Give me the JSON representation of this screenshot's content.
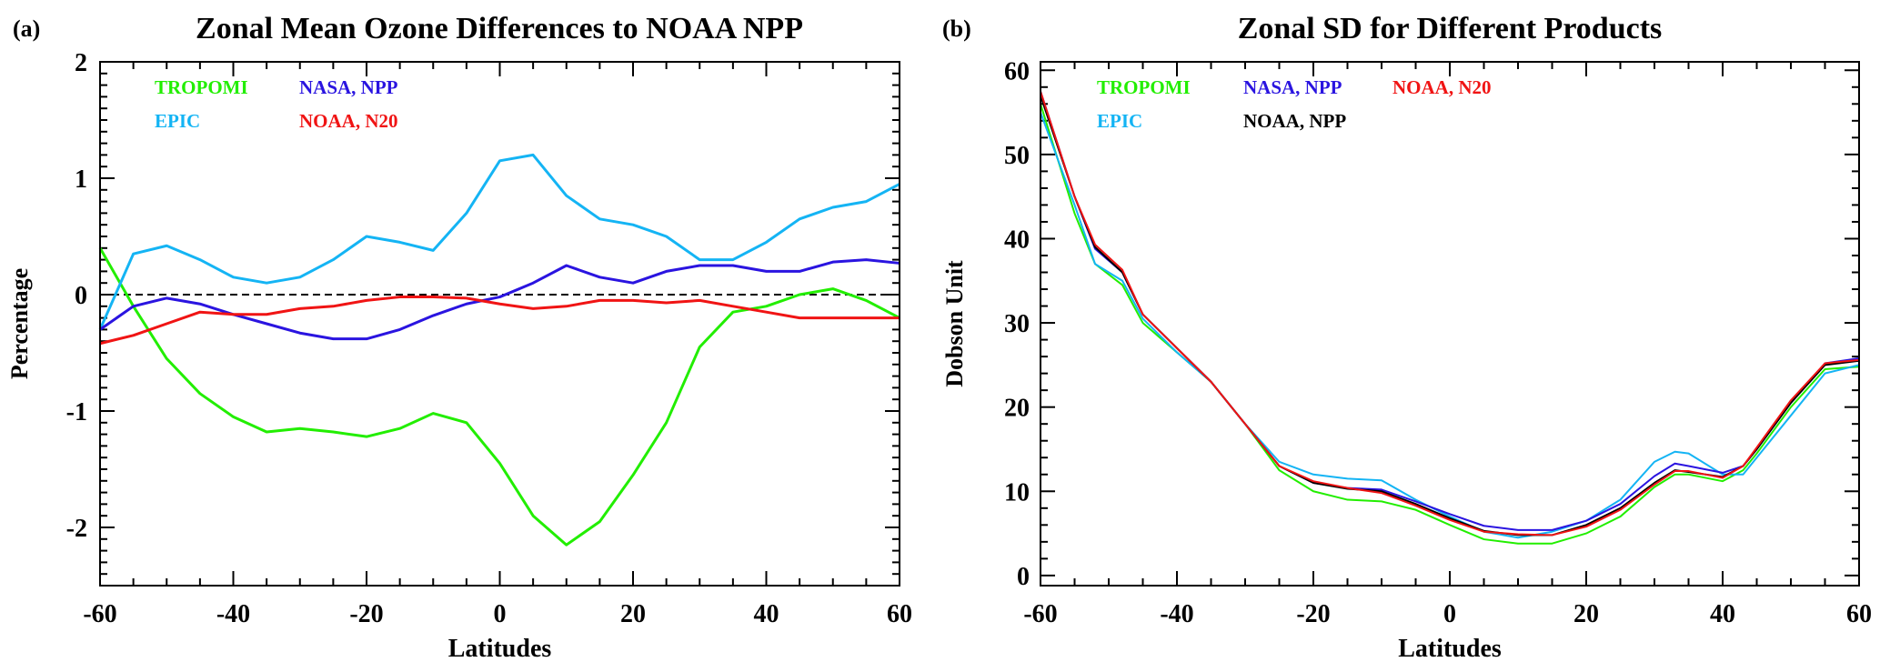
{
  "chart_data": [
    {
      "type": "line",
      "panel_label": "(a)",
      "title": "Zonal Mean Ozone Differences to NOAA NPP",
      "xlabel": "Latitudes",
      "ylabel": "Percentage",
      "xlim": [
        -60,
        60
      ],
      "ylim": [
        -2.5,
        2
      ],
      "xticks": [
        -60,
        -40,
        -20,
        0,
        20,
        40,
        60
      ],
      "yticks": [
        -2,
        -1,
        0,
        1,
        2
      ],
      "reference_line": {
        "y": 0,
        "style": "dashed",
        "color": "#000000"
      },
      "legend_placement": "top-left",
      "x": [
        -60,
        -55,
        -50,
        -45,
        -40,
        -35,
        -30,
        -25,
        -20,
        -15,
        -10,
        -5,
        0,
        5,
        10,
        15,
        20,
        25,
        30,
        35,
        40,
        45,
        50,
        55,
        60
      ],
      "series": [
        {
          "name": "TROPOMI",
          "color": "#22ee00",
          "values": [
            0.4,
            -0.1,
            -0.55,
            -0.85,
            -1.05,
            -1.18,
            -1.15,
            -1.18,
            -1.22,
            -1.15,
            -1.02,
            -1.1,
            -1.45,
            -1.9,
            -2.15,
            -1.95,
            -1.55,
            -1.1,
            -0.45,
            -0.15,
            -0.1,
            0.0,
            0.05,
            -0.05,
            -0.2
          ]
        },
        {
          "name": "EPIC",
          "color": "#14b4f4",
          "values": [
            -0.3,
            0.35,
            0.42,
            0.3,
            0.15,
            0.1,
            0.15,
            0.3,
            0.5,
            0.45,
            0.38,
            0.7,
            1.15,
            1.2,
            0.85,
            0.65,
            0.6,
            0.5,
            0.3,
            0.3,
            0.45,
            0.65,
            0.75,
            0.8,
            0.95
          ]
        },
        {
          "name": "NASA, NPP",
          "color": "#2a14e0",
          "values": [
            -0.3,
            -0.1,
            -0.03,
            -0.08,
            -0.17,
            -0.25,
            -0.33,
            -0.38,
            -0.38,
            -0.3,
            -0.18,
            -0.08,
            -0.02,
            0.1,
            0.25,
            0.15,
            0.1,
            0.2,
            0.25,
            0.25,
            0.2,
            0.2,
            0.28,
            0.3,
            0.27
          ]
        },
        {
          "name": "NOAA, N20",
          "color": "#f01414",
          "values": [
            -0.42,
            -0.35,
            -0.25,
            -0.15,
            -0.17,
            -0.17,
            -0.12,
            -0.1,
            -0.05,
            -0.02,
            -0.02,
            -0.03,
            -0.08,
            -0.12,
            -0.1,
            -0.05,
            -0.05,
            -0.07,
            -0.05,
            -0.1,
            -0.15,
            -0.2,
            -0.2,
            -0.2,
            -0.2
          ]
        }
      ]
    },
    {
      "type": "line",
      "panel_label": "(b)",
      "title": "Zonal SD for Different Products",
      "xlabel": "Latitudes",
      "ylabel": "Dobson Unit",
      "xlim": [
        -60,
        60
      ],
      "ylim": [
        -1.2,
        61
      ],
      "xticks": [
        -60,
        -40,
        -20,
        0,
        20,
        40,
        60
      ],
      "yticks": [
        0,
        10,
        20,
        30,
        40,
        50,
        60
      ],
      "legend_placement": "top-left",
      "x": [
        -60,
        -55,
        -52,
        -48,
        -45,
        -40,
        -35,
        -30,
        -25,
        -20,
        -15,
        -10,
        -5,
        0,
        5,
        10,
        15,
        20,
        25,
        30,
        33,
        35,
        40,
        43,
        45,
        50,
        55,
        60
      ],
      "series": [
        {
          "name": "TROPOMI",
          "color": "#22ee00",
          "values": [
            56,
            43,
            37,
            34.5,
            30,
            26.5,
            23,
            18,
            12.5,
            10,
            9,
            8.8,
            7.8,
            6,
            4.3,
            3.8,
            3.8,
            5,
            7,
            10.5,
            12,
            12,
            11.2,
            12.5,
            14.5,
            20,
            24.5,
            24.8
          ]
        },
        {
          "name": "EPIC",
          "color": "#14b4f4",
          "values": [
            55,
            44,
            37,
            35,
            30.5,
            26.5,
            23,
            18,
            13.5,
            12,
            11.5,
            11.3,
            9,
            7,
            5.2,
            4.5,
            5.2,
            6.5,
            9,
            13.5,
            14.7,
            14.5,
            12,
            12,
            14,
            19,
            24,
            25
          ]
        },
        {
          "name": "NASA, NPP",
          "color": "#2a14e0",
          "values": [
            57.5,
            45,
            38.8,
            36,
            31,
            27,
            23,
            18,
            13,
            11,
            10.4,
            10.2,
            8.8,
            7.3,
            5.9,
            5.4,
            5.4,
            6.5,
            8.5,
            11.8,
            13.3,
            13,
            12.2,
            13,
            15,
            20.5,
            25.2,
            25.8
          ]
        },
        {
          "name": "NOAA, NPP",
          "color": "#000000",
          "values": [
            57,
            45,
            39,
            36,
            31,
            27,
            23,
            18,
            13,
            11,
            10.3,
            10,
            8.5,
            6.8,
            5.3,
            4.8,
            4.8,
            6,
            8,
            11,
            12.5,
            12.3,
            11.7,
            13,
            15,
            20.5,
            25,
            25.5
          ]
        },
        {
          "name": "NOAA, N20",
          "color": "#f01414",
          "values": [
            57.5,
            45,
            39.3,
            36.3,
            31,
            27,
            23,
            18,
            13,
            11.2,
            10.4,
            9.8,
            8.3,
            6.6,
            5.2,
            4.9,
            4.8,
            5.8,
            7.8,
            10.8,
            12.4,
            12.4,
            11.6,
            13,
            15.2,
            20.8,
            25.2,
            25.6
          ]
        }
      ]
    }
  ]
}
